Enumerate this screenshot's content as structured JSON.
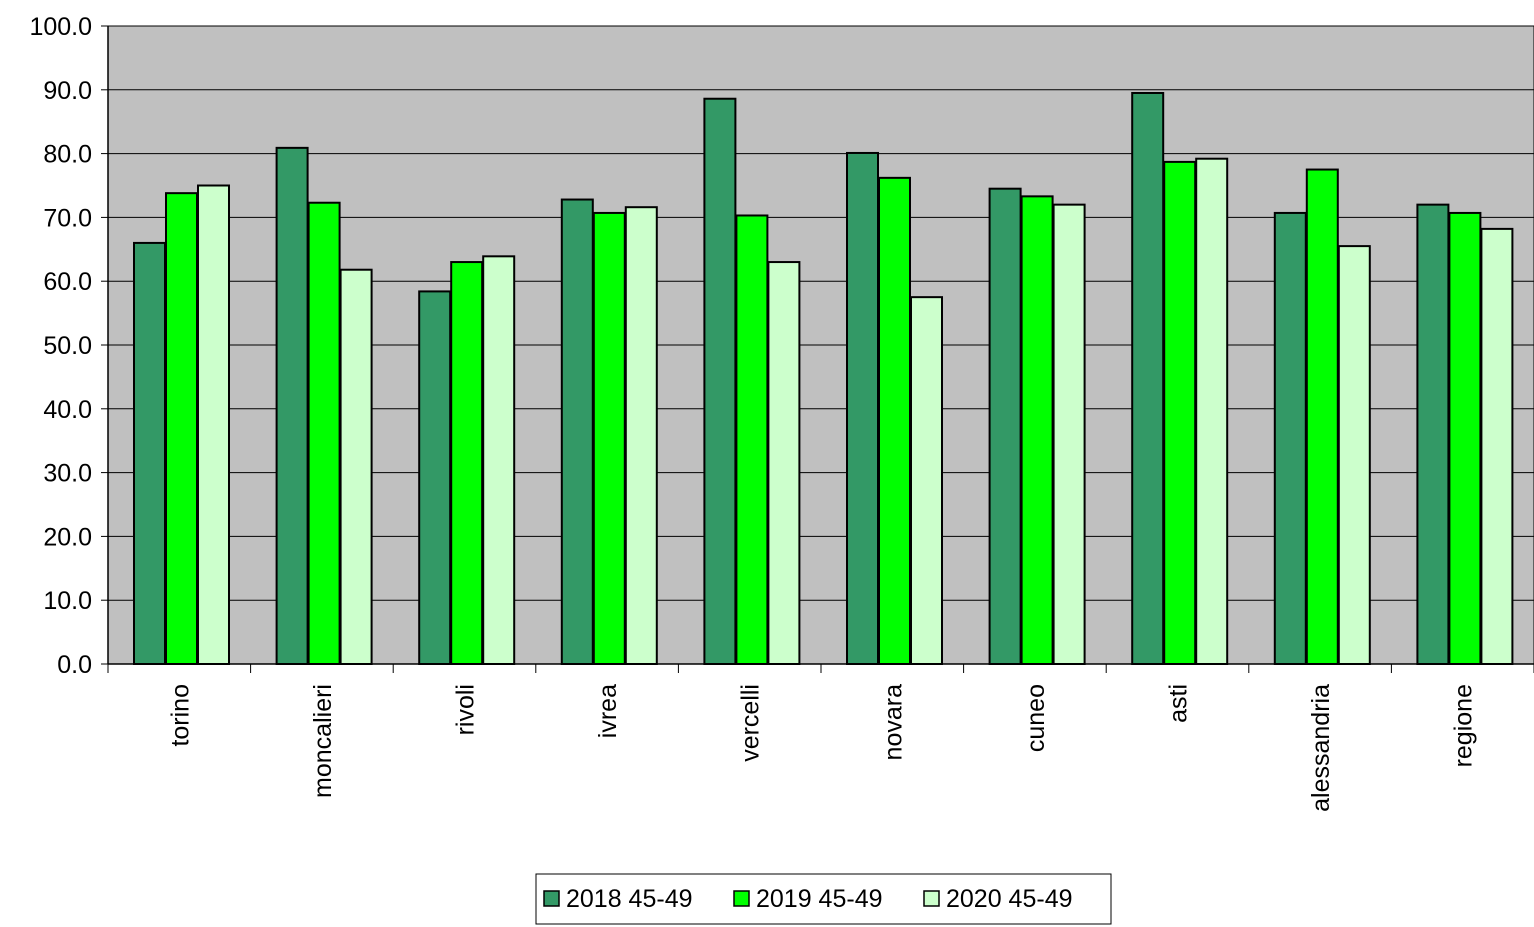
{
  "chart_data": {
    "type": "bar",
    "title": "",
    "xlabel": "",
    "ylabel": "",
    "ylim": [
      0,
      100
    ],
    "yticks": [
      "0.0",
      "10.0",
      "20.0",
      "30.0",
      "40.0",
      "50.0",
      "60.0",
      "70.0",
      "80.0",
      "90.0",
      "100.0"
    ],
    "grid": true,
    "legend_position": "bottom-center",
    "categories": [
      "torino",
      "moncalieri",
      "rivoli",
      "ivrea",
      "vercelli",
      "novara",
      "cuneo",
      "asti",
      "alessandria",
      "regione"
    ],
    "series": [
      {
        "name": "2018 45-49",
        "color": "#339966",
        "values": [
          66.0,
          80.9,
          58.4,
          72.8,
          88.6,
          80.1,
          74.5,
          89.5,
          70.7,
          72.0
        ]
      },
      {
        "name": "2019 45-49",
        "color": "#00ff00",
        "values": [
          73.8,
          72.3,
          63.0,
          70.7,
          70.3,
          76.2,
          73.3,
          78.7,
          77.5,
          70.7
        ]
      },
      {
        "name": "2020 45-49",
        "color": "#ccffcc",
        "values": [
          75.0,
          61.8,
          63.9,
          71.6,
          63.0,
          57.5,
          72.0,
          79.2,
          65.5,
          68.2
        ]
      }
    ],
    "colors": {
      "plot_background": "#c0c0c0",
      "gridline": "#000000",
      "bar_border": "#000000"
    }
  }
}
